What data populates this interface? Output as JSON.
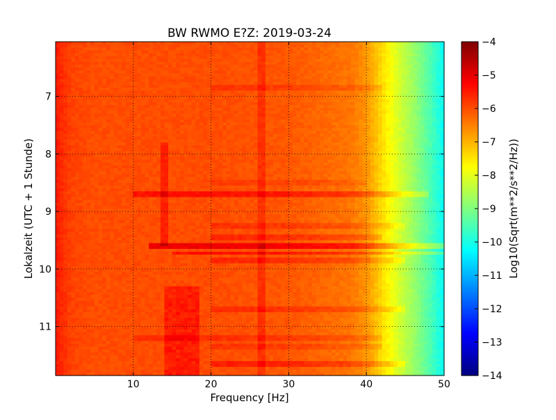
{
  "chart_data": {
    "type": "heatmap",
    "title": "BW RWMO E?Z: 2019-03-24",
    "xlabel": "Frequency [Hz]",
    "ylabel": "Lokalzeit (UTC + 1 Stunde)",
    "xlim": [
      0,
      50
    ],
    "ylim": [
      6.05,
      11.85
    ],
    "y_inverted": true,
    "x_ticks": [
      10,
      20,
      30,
      40,
      50
    ],
    "x_tick_labels": [
      "10",
      "20",
      "30",
      "40",
      "50"
    ],
    "y_ticks": [
      7,
      8,
      9,
      10,
      11
    ],
    "y_tick_labels": [
      "7",
      "8",
      "9",
      "10",
      "11"
    ],
    "grid": true,
    "colormap": "jet",
    "colorbar": {
      "label": "Log10(Sqrt(m**2/s**2/Hz))",
      "range": [
        -14,
        -4
      ],
      "ticks": [
        -4,
        -5,
        -6,
        -7,
        -8,
        -9,
        -10,
        -11,
        -12,
        -13,
        -14
      ],
      "tick_labels": [
        "−4",
        "−5",
        "−6",
        "−7",
        "−8",
        "−9",
        "−10",
        "−11",
        "−12",
        "−13",
        "−14"
      ]
    },
    "spectrum_profile": {
      "frequency_hz": [
        0,
        1,
        2,
        5,
        10,
        20,
        30,
        38,
        40,
        42,
        44,
        46,
        48,
        50
      ],
      "log10_amplitude": [
        -5.5,
        -5.7,
        -5.9,
        -6.0,
        -6.0,
        -6.0,
        -6.1,
        -6.4,
        -6.7,
        -7.4,
        -8.1,
        -8.7,
        -9.4,
        -10.2
      ]
    },
    "features": [
      {
        "type": "band",
        "time": 6.85,
        "freq_range": [
          20,
          42
        ],
        "delta": 0.25
      },
      {
        "type": "band",
        "time": 8.5,
        "freq_range": [
          20,
          40
        ],
        "delta": 0.2
      },
      {
        "type": "band",
        "time": 8.7,
        "freq_range": [
          10,
          48
        ],
        "delta": 0.6
      },
      {
        "type": "band",
        "time": 9.27,
        "freq_range": [
          20,
          45
        ],
        "delta": 0.3
      },
      {
        "type": "band",
        "time": 9.45,
        "freq_range": [
          20,
          42
        ],
        "delta": 0.4
      },
      {
        "type": "band",
        "time": 9.62,
        "freq_range": [
          12,
          50
        ],
        "delta": 0.9
      },
      {
        "type": "band",
        "time": 9.72,
        "freq_range": [
          15,
          50
        ],
        "delta": 0.6
      },
      {
        "type": "band",
        "time": 9.85,
        "freq_range": [
          20,
          45
        ],
        "delta": 0.4
      },
      {
        "type": "band",
        "time": 10.68,
        "freq_range": [
          20,
          45
        ],
        "delta": 0.35
      },
      {
        "type": "band",
        "time": 11.2,
        "freq_range": [
          10,
          42
        ],
        "delta": 0.3
      },
      {
        "type": "band",
        "time": 11.35,
        "freq_range": [
          20,
          42
        ],
        "delta": 0.25
      },
      {
        "type": "band",
        "time": 11.67,
        "freq_range": [
          20,
          45
        ],
        "delta": 0.5
      },
      {
        "type": "line",
        "freq": 26.5,
        "time_range": [
          6.05,
          11.85
        ],
        "delta": 0.35
      },
      {
        "type": "line",
        "freq": 14,
        "time_range": [
          7.8,
          9.6
        ],
        "delta": 0.45
      },
      {
        "type": "patch",
        "freq_range": [
          14,
          18.5
        ],
        "time_range": [
          10.3,
          11.85
        ],
        "delta": 0.6
      }
    ]
  }
}
